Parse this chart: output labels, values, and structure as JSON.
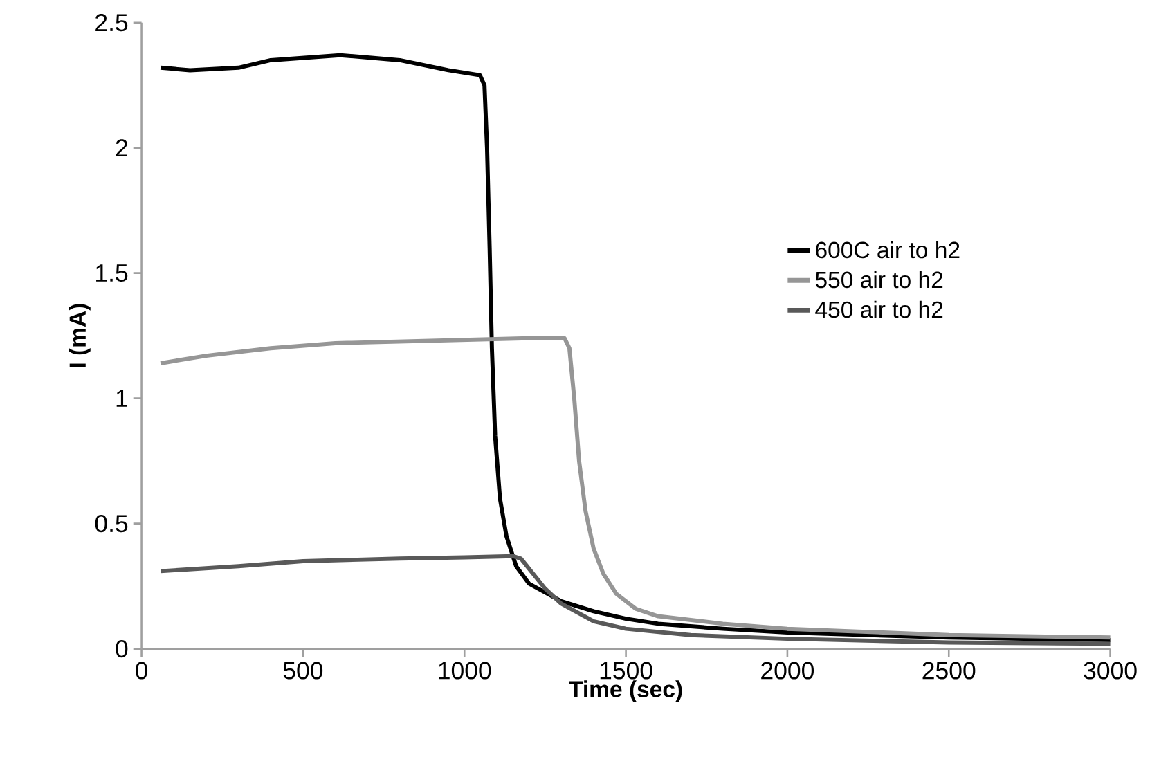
{
  "chart_data": {
    "type": "line",
    "xlabel": "Time (sec)",
    "ylabel": "I (mA)",
    "xlim": [
      0,
      3000
    ],
    "xticks": [
      0,
      500,
      1000,
      1500,
      2000,
      2500,
      3000
    ],
    "ylim": [
      0,
      2.5
    ],
    "yticks": [
      0,
      0.5,
      1,
      1.5,
      2,
      2.5
    ],
    "legend": "right",
    "marker": "none",
    "line_style": "solid",
    "series": [
      {
        "name": "600C air to h2",
        "color": "#000000",
        "x": [
          59,
          150,
          300,
          400,
          615,
          800,
          950,
          1048,
          1062,
          1070,
          1078,
          1085,
          1095,
          1110,
          1130,
          1160,
          1200,
          1300,
          1400,
          1500,
          1600,
          1800,
          2000,
          2500,
          3000
        ],
        "values": [
          2.32,
          2.31,
          2.32,
          2.35,
          2.37,
          2.35,
          2.31,
          2.29,
          2.25,
          2.0,
          1.6,
          1.2,
          0.85,
          0.6,
          0.45,
          0.33,
          0.26,
          0.19,
          0.15,
          0.12,
          0.1,
          0.08,
          0.065,
          0.045,
          0.035
        ]
      },
      {
        "name": "550 air to h2",
        "color": "#969696",
        "x": [
          59,
          200,
          400,
          600,
          900,
          1200,
          1310,
          1325,
          1340,
          1355,
          1375,
          1400,
          1430,
          1470,
          1530,
          1600,
          1800,
          2000,
          2500,
          3000
        ],
        "values": [
          1.14,
          1.17,
          1.2,
          1.22,
          1.23,
          1.24,
          1.24,
          1.2,
          1.0,
          0.75,
          0.55,
          0.4,
          0.3,
          0.22,
          0.16,
          0.13,
          0.1,
          0.08,
          0.055,
          0.045
        ]
      },
      {
        "name": "450 air to h2",
        "color": "#595959",
        "x": [
          59,
          300,
          500,
          800,
          1000,
          1150,
          1175,
          1200,
          1250,
          1300,
          1400,
          1500,
          1700,
          2000,
          2500,
          3000
        ],
        "values": [
          0.31,
          0.33,
          0.35,
          0.36,
          0.365,
          0.37,
          0.36,
          0.32,
          0.24,
          0.18,
          0.11,
          0.08,
          0.055,
          0.04,
          0.025,
          0.02
        ]
      }
    ]
  }
}
